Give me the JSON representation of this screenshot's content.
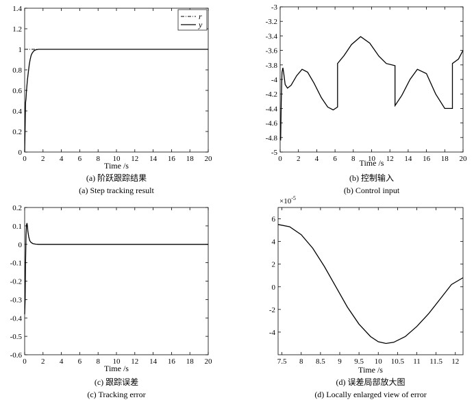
{
  "chart_data": [
    {
      "type": "line",
      "id": "a",
      "xlabel": "Time /s",
      "caption_cn": "(a) 阶跃跟踪结果",
      "caption_en": "(a) Step tracking result",
      "xlim": [
        0,
        20
      ],
      "ylim": [
        0,
        1.4
      ],
      "xticks": [
        "0",
        "2",
        "4",
        "6",
        "8",
        "10",
        "12",
        "14",
        "16",
        "18",
        "20"
      ],
      "yticks": [
        "0",
        "0.2",
        "0.4",
        "0.6",
        "0.8",
        "1",
        "1.2",
        "1.4"
      ],
      "legend": {
        "position": "top-right",
        "entries": [
          "r",
          "y"
        ]
      },
      "series": [
        {
          "name": "r",
          "style": "dashdot",
          "x": [
            0,
            20
          ],
          "y": [
            1,
            1
          ]
        },
        {
          "name": "y",
          "style": "solid",
          "x": [
            0,
            0.05,
            0.1,
            0.15,
            0.2,
            0.3,
            0.4,
            0.5,
            0.6,
            0.7,
            0.8,
            1.0,
            1.2,
            1.5,
            2.0,
            3,
            20
          ],
          "y": [
            0,
            0.25,
            0.48,
            0.52,
            0.6,
            0.7,
            0.78,
            0.85,
            0.9,
            0.94,
            0.96,
            0.985,
            0.995,
            1.0,
            1.0,
            1.0,
            1.0
          ]
        }
      ]
    },
    {
      "type": "line",
      "id": "b",
      "xlabel": "Time /s",
      "caption_cn": "(b) 控制输入",
      "caption_en": "(b) Control input",
      "xlim": [
        0,
        20
      ],
      "ylim": [
        -5,
        -3
      ],
      "xticks": [
        "0",
        "2",
        "4",
        "6",
        "8",
        "10",
        "12",
        "14",
        "16",
        "18",
        "20"
      ],
      "yticks": [
        "-3",
        "-3.2",
        "-3.4",
        "-3.6",
        "-3.8",
        "-4",
        "-4.2",
        "-4.4",
        "-4.6",
        "-4.8",
        "-5"
      ],
      "series": [
        {
          "name": "",
          "style": "solid",
          "x": [
            0,
            0.05,
            0.12,
            0.2,
            0.3,
            0.4,
            0.55,
            0.8,
            1.2,
            1.8,
            2.4,
            3.0,
            3.7,
            4.5,
            5.2,
            5.8,
            6.28,
            6.28,
            7.0,
            7.8,
            8.8,
            9.8,
            10.8,
            11.6,
            12.56,
            12.56,
            13.3,
            14.2,
            15.0,
            16.0,
            17.0,
            18.0,
            18.84,
            18.84,
            19.5,
            20.0
          ],
          "y": [
            -4.8,
            -4.84,
            -4.3,
            -3.9,
            -3.84,
            -3.92,
            -4.07,
            -4.12,
            -4.08,
            -3.95,
            -3.86,
            -3.9,
            -4.05,
            -4.25,
            -4.38,
            -4.42,
            -4.38,
            -3.78,
            -3.67,
            -3.52,
            -3.41,
            -3.5,
            -3.68,
            -3.78,
            -3.81,
            -4.36,
            -4.22,
            -4.0,
            -3.86,
            -3.92,
            -4.2,
            -4.4,
            -4.4,
            -3.78,
            -3.72,
            -3.6
          ]
        }
      ]
    },
    {
      "type": "line",
      "id": "c",
      "xlabel": "Time /s",
      "caption_cn": "(c) 跟踪误差",
      "caption_en": "(c) Tracking error",
      "xlim": [
        0,
        20
      ],
      "ylim": [
        -0.6,
        0.2
      ],
      "xticks": [
        "0",
        "2",
        "4",
        "6",
        "8",
        "10",
        "12",
        "14",
        "16",
        "18",
        "20"
      ],
      "yticks": [
        "0.2",
        "0.1",
        "0",
        "-0.1",
        "-0.2",
        "-0.3",
        "-0.4",
        "-0.5",
        "-0.6"
      ],
      "series": [
        {
          "name": "",
          "style": "solid",
          "x": [
            0,
            0.05,
            0.1,
            0.15,
            0.2,
            0.25,
            0.3,
            0.35,
            0.45,
            0.55,
            0.7,
            0.9,
            1.2,
            1.6,
            2.0,
            20
          ],
          "y": [
            -0.38,
            -0.3,
            -0.1,
            0.05,
            0.105,
            0.115,
            0.1,
            0.07,
            0.04,
            0.02,
            0.01,
            0.004,
            0.001,
            0.0,
            0.0,
            0.0
          ]
        }
      ]
    },
    {
      "type": "line",
      "id": "d",
      "xlabel": "Time /s",
      "caption_cn": "(d) 误差局部放大图",
      "caption_en": "(d) Locally enlarged view of error",
      "scale_label": "×10",
      "scale_exp": "-5",
      "xlim": [
        7.4,
        12.2
      ],
      "ylim": [
        -6,
        7
      ],
      "xticks": [
        "7.5",
        "8",
        "8.5",
        "9",
        "9.5",
        "10",
        "10.5",
        "11",
        "11.5",
        "12"
      ],
      "yticks": [
        "6",
        "4",
        "2",
        "0",
        "-2",
        "-4"
      ],
      "series": [
        {
          "name": "",
          "style": "solid",
          "x": [
            7.4,
            7.7,
            8.0,
            8.3,
            8.6,
            8.9,
            9.2,
            9.5,
            9.8,
            10.0,
            10.2,
            10.4,
            10.7,
            11.0,
            11.3,
            11.6,
            11.9,
            12.2
          ],
          "y": [
            5.5,
            5.3,
            4.6,
            3.4,
            1.8,
            0.0,
            -1.8,
            -3.3,
            -4.4,
            -4.85,
            -5.0,
            -4.9,
            -4.4,
            -3.5,
            -2.4,
            -1.1,
            0.2,
            0.8
          ]
        }
      ]
    }
  ]
}
